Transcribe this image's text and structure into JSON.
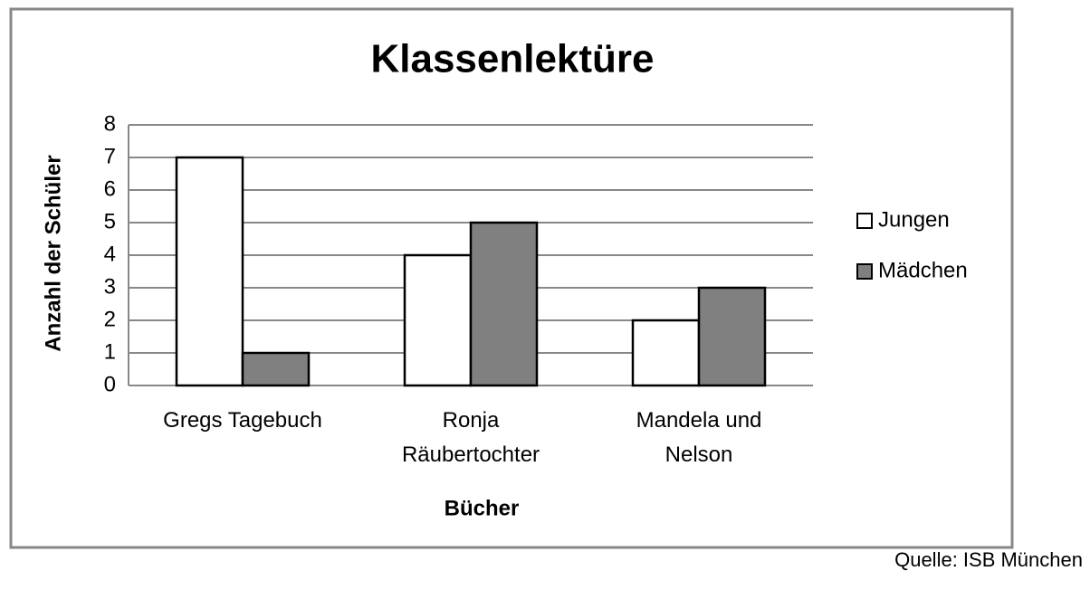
{
  "chart_data": {
    "type": "bar",
    "title": "Klassenlektüre",
    "x_label": "Bücher",
    "y_label": "Anzahl der Schüler",
    "categories": [
      "Gregs Tagebuch",
      "Ronja\nRäubertochter",
      "Mandela und\nNelson"
    ],
    "series": [
      {
        "name": "Jungen",
        "color": "#ffffff",
        "values": [
          7,
          4,
          2
        ]
      },
      {
        "name": "Mädchen",
        "color": "#808080",
        "values": [
          1,
          5,
          3
        ]
      }
    ],
    "ylim": [
      0,
      8
    ],
    "yticks": [
      0,
      1,
      2,
      3,
      4,
      5,
      6,
      7,
      8
    ],
    "grid": true,
    "legend": "right",
    "source": "Quelle: ISB München"
  }
}
